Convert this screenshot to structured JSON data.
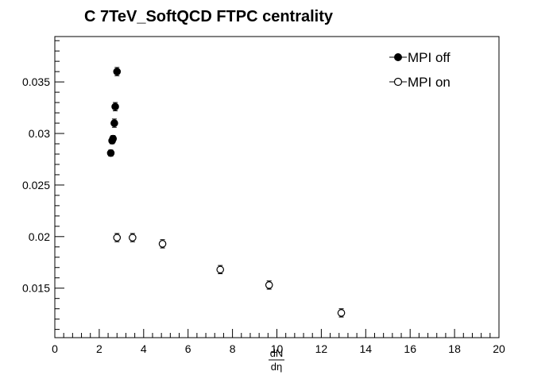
{
  "chart_data": {
    "type": "scatter",
    "title": "C 7TeV_SoftQCD FTPC centrality",
    "xlabel_numerator": "dN",
    "xlabel_denominator": "dη",
    "ylabel": "",
    "xlim": [
      0,
      20
    ],
    "ylim": [
      0.0102,
      0.0394
    ],
    "x_ticks": [
      0,
      2,
      4,
      6,
      8,
      10,
      12,
      14,
      16,
      18,
      20
    ],
    "y_ticks": [
      0.015,
      0.02,
      0.025,
      0.03,
      0.035
    ],
    "x_tick_labels": [
      "0",
      "2",
      "4",
      "6",
      "8",
      "10",
      "12",
      "14",
      "16",
      "18",
      "20"
    ],
    "y_tick_labels": [
      "0.015",
      "0.02",
      "0.025",
      "0.03",
      "0.035"
    ],
    "grid": false,
    "legend_position": "top-right",
    "series": [
      {
        "name": "MPI off",
        "marker": "filled-circle",
        "color": "#000000",
        "points": [
          {
            "x": 2.52,
            "y": 0.0281,
            "err": 0.0003
          },
          {
            "x": 2.58,
            "y": 0.0293,
            "err": 0.0003
          },
          {
            "x": 2.62,
            "y": 0.0295,
            "err": 0.0003
          },
          {
            "x": 2.68,
            "y": 0.031,
            "err": 0.0004
          },
          {
            "x": 2.72,
            "y": 0.0326,
            "err": 0.0004
          },
          {
            "x": 2.8,
            "y": 0.036,
            "err": 0.0004
          }
        ]
      },
      {
        "name": "MPI on",
        "marker": "open-circle",
        "color": "#000000",
        "points": [
          {
            "x": 2.8,
            "y": 0.0199,
            "err": 0.0004
          },
          {
            "x": 3.5,
            "y": 0.0199,
            "err": 0.0004
          },
          {
            "x": 4.85,
            "y": 0.0193,
            "err": 0.0004
          },
          {
            "x": 7.45,
            "y": 0.0168,
            "err": 0.0004
          },
          {
            "x": 9.65,
            "y": 0.0153,
            "err": 0.0004
          },
          {
            "x": 12.9,
            "y": 0.0126,
            "err": 0.0004
          }
        ]
      }
    ]
  }
}
